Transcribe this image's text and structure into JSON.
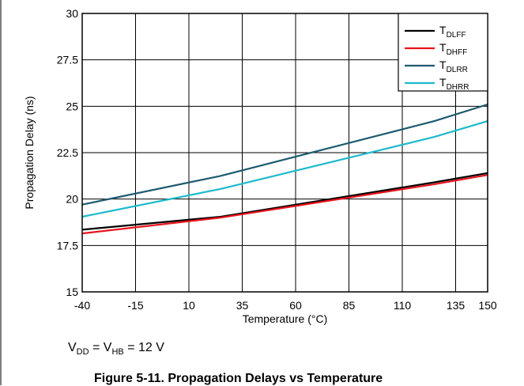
{
  "chart_data": {
    "type": "line",
    "title": "",
    "xlabel": "Temperature (°C)",
    "ylabel": "Propagation Delay (ns)",
    "xlim": [
      -40,
      150
    ],
    "ylim": [
      15,
      30
    ],
    "x_ticks": [
      -40,
      -15,
      10,
      35,
      60,
      85,
      110,
      135,
      150
    ],
    "x_tick_labels": [
      "-40",
      "-15",
      "10",
      "35",
      "60",
      "85",
      "110",
      "135",
      "150"
    ],
    "y_ticks": [
      15,
      17.5,
      20,
      22.5,
      25,
      27.5,
      30
    ],
    "y_tick_labels": [
      "15",
      "17.5",
      "20",
      "22.5",
      "25",
      "27.5",
      "30"
    ],
    "grid": true,
    "legend_position": "top-right",
    "x": [
      -40,
      25,
      125,
      150
    ],
    "series": [
      {
        "name": "DLFF",
        "label_main": "T",
        "label_sub": "DLFF",
        "color": "#000000",
        "values": [
          18.35,
          19.05,
          20.9,
          21.4
        ]
      },
      {
        "name": "DHFF",
        "label_main": "T",
        "label_sub": "DHFF",
        "color": "#e8141c",
        "values": [
          18.15,
          19.0,
          20.8,
          21.3
        ]
      },
      {
        "name": "DLRR",
        "label_main": "T",
        "label_sub": "DLRR",
        "color": "#1d5a6e",
        "values": [
          19.7,
          21.25,
          24.2,
          25.1
        ]
      },
      {
        "name": "DHRR",
        "label_main": "T",
        "label_sub": "DHRR",
        "color": "#1cbacb",
        "values": [
          19.05,
          20.55,
          23.35,
          24.2
        ]
      }
    ]
  },
  "condition": {
    "v1": "V",
    "v1_sub": "DD",
    "eq1": " = ",
    "v2": "V",
    "v2_sub": "HB",
    "eq2": " = 12 V"
  },
  "caption": "Figure 5-11. Propagation Delays vs Temperature"
}
